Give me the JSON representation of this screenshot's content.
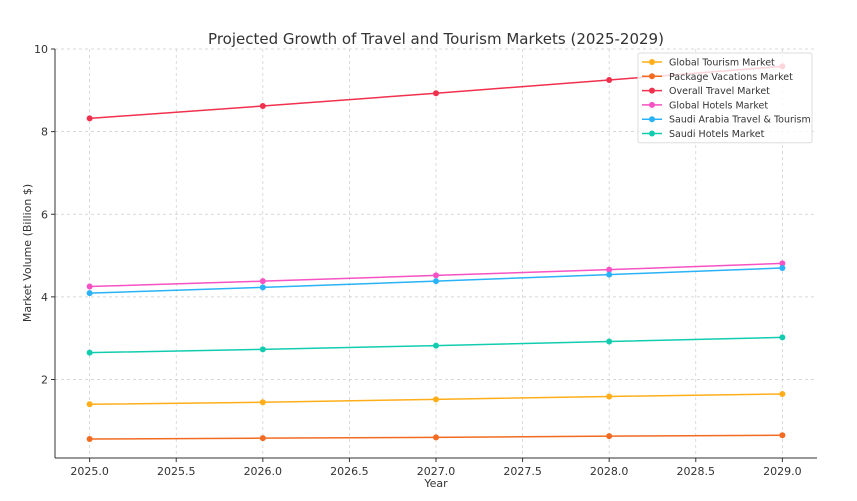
{
  "chart_data": {
    "type": "line",
    "title": "Projected Growth of Travel and Tourism Markets (2025-2029)",
    "xlabel": "Year",
    "ylabel": "Market Volume (Billion $)",
    "x": [
      2025,
      2026,
      2027,
      2028,
      2029
    ],
    "xlim": [
      2024.8,
      2029.2
    ],
    "ylim": [
      0.1,
      10
    ],
    "xticks": [
      "2025.0",
      "2025.5",
      "2026.0",
      "2026.5",
      "2027.0",
      "2027.5",
      "2028.0",
      "2028.5",
      "2029.0"
    ],
    "yticks": [
      "2",
      "4",
      "6",
      "8",
      "10"
    ],
    "grid": true,
    "legend_position": "top-right",
    "series": [
      {
        "name": "Global Tourism Market",
        "color": "#ffae1a",
        "values": [
          1.4,
          1.45,
          1.52,
          1.59,
          1.65
        ]
      },
      {
        "name": "Package Vacations Market",
        "color": "#f26b21",
        "values": [
          0.56,
          0.58,
          0.6,
          0.63,
          0.65
        ]
      },
      {
        "name": "Overall Travel Market",
        "color": "#f0304d",
        "values": [
          8.32,
          8.62,
          8.93,
          9.25,
          9.58
        ]
      },
      {
        "name": "Global Hotels Market",
        "color": "#f752c3",
        "values": [
          4.25,
          4.38,
          4.52,
          4.66,
          4.81
        ]
      },
      {
        "name": "Saudi Arabia Travel & Tourism",
        "color": "#29b2f7",
        "values": [
          4.09,
          4.23,
          4.38,
          4.54,
          4.7
        ]
      },
      {
        "name": "Saudi Hotels Market",
        "color": "#12ccb0",
        "values": [
          2.65,
          2.73,
          2.82,
          2.92,
          3.02
        ]
      }
    ]
  }
}
